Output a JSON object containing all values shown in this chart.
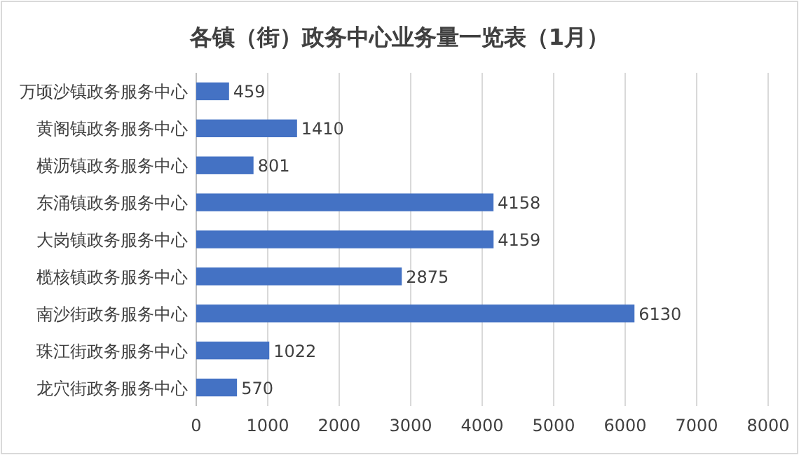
{
  "chart_data": {
    "type": "bar",
    "orientation": "horizontal",
    "title": "各镇（街）政务中心业务量一览表（1月）",
    "categories": [
      "万顷沙镇政务服务中心",
      "黄阁镇政务服务中心",
      "横沥镇政务服务中心",
      "东涌镇政务服务中心",
      "大岗镇政务服务中心",
      "榄核镇政务服务中心",
      "南沙街政务服务中心",
      "珠江街政务服务中心",
      "龙穴街政务服务中心"
    ],
    "values": [
      459,
      1410,
      801,
      4158,
      4159,
      2875,
      6130,
      1022,
      570
    ],
    "color": "#4472c4",
    "xlim": [
      0,
      8000
    ],
    "xticks": [
      0,
      1000,
      2000,
      3000,
      4000,
      5000,
      6000,
      7000,
      8000
    ],
    "grid": "x",
    "data_labels": true
  }
}
